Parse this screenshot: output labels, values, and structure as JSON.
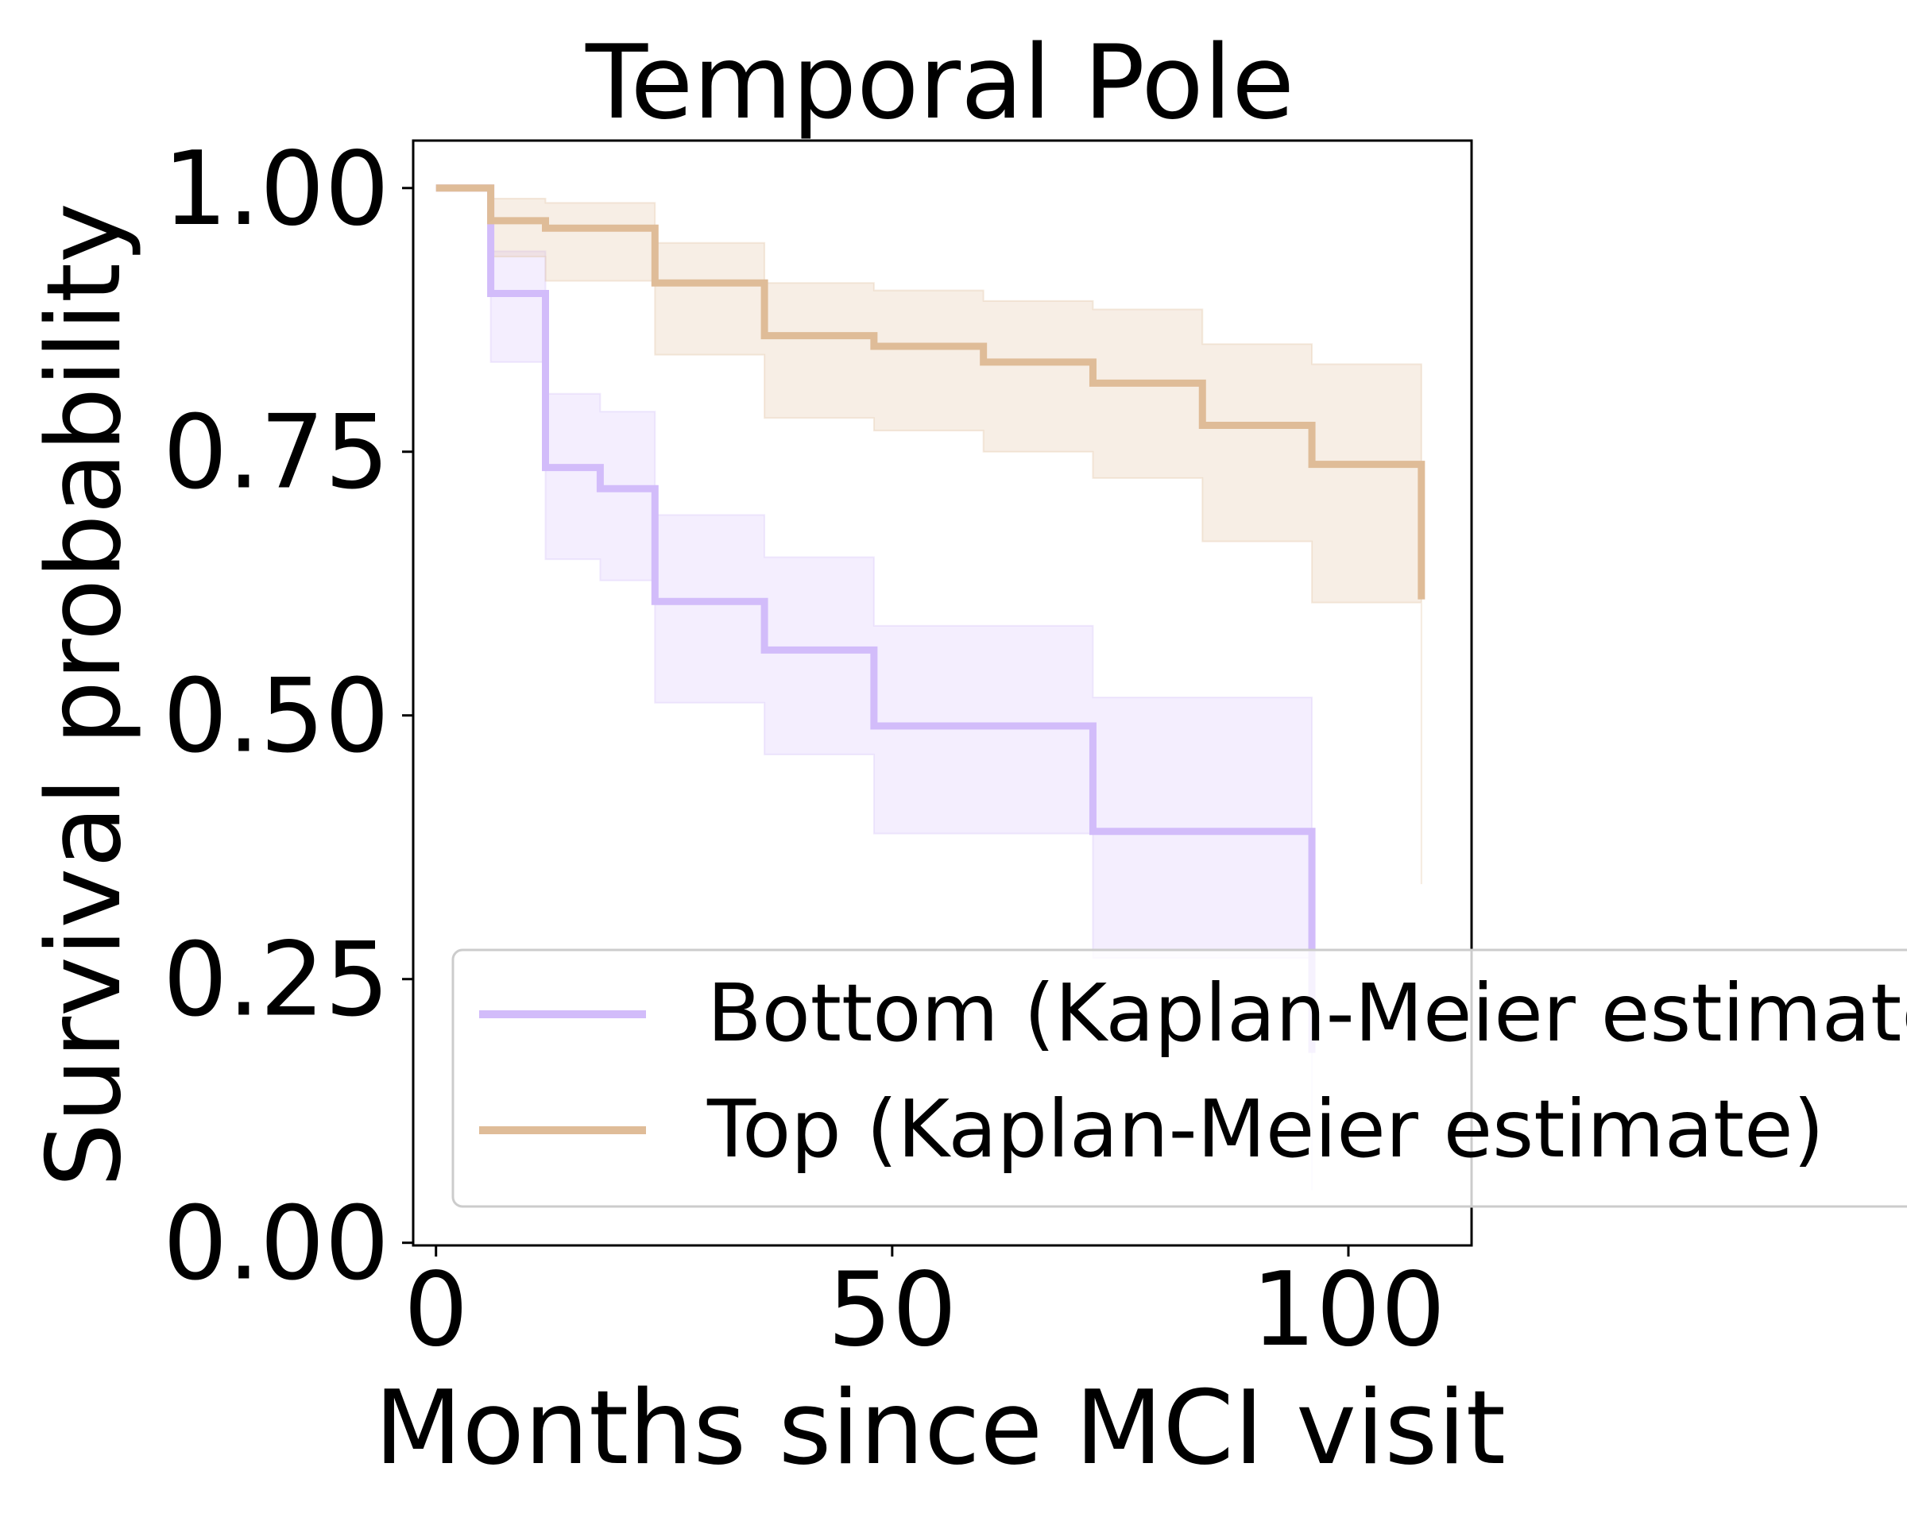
{
  "chart_data": {
    "type": "line",
    "title": "Temporal Pole",
    "xlabel": "Months since MCI visit",
    "ylabel": "Survival probability",
    "xlim": [
      -2.5,
      113.5
    ],
    "ylim": [
      -0.0025,
      1.045
    ],
    "xticks": [
      {
        "value": 0,
        "label": "0"
      },
      {
        "value": 50,
        "label": "50"
      },
      {
        "value": 100,
        "label": "100"
      }
    ],
    "yticks": [
      {
        "value": 0,
        "label": "0.00"
      },
      {
        "value": 0.25,
        "label": "0.25"
      },
      {
        "value": 0.5,
        "label": "0.50"
      },
      {
        "value": 0.75,
        "label": "0.75"
      },
      {
        "value": 1,
        "label": "1.00"
      }
    ],
    "grid": false,
    "legend_position": "lower-right",
    "series": [
      {
        "name": "Bottom (Kaplan-Meier estimate)",
        "color": "#d2bcfa",
        "step": "post",
        "x": [
          0,
          6,
          12,
          18,
          24,
          36,
          48,
          60,
          72,
          84,
          96
        ],
        "y": [
          1.0,
          0.9,
          0.735,
          0.715,
          0.608,
          0.562,
          0.49,
          0.49,
          0.39,
          0.39,
          0.18
        ],
        "ci_lower": [
          1.0,
          0.835,
          0.648,
          0.628,
          0.512,
          0.463,
          0.388,
          0.388,
          0.27,
          0.27,
          0.05
        ],
        "ci_upper": [
          1.0,
          0.94,
          0.805,
          0.788,
          0.69,
          0.65,
          0.585,
          0.585,
          0.517,
          0.517,
          0.517
        ]
      },
      {
        "name": "Top (Kaplan-Meier estimate)",
        "color": "#dfbc98",
        "step": "post",
        "x": [
          0,
          6,
          12,
          24,
          36,
          48,
          60,
          72,
          84,
          96,
          108
        ],
        "y": [
          1.0,
          0.969,
          0.962,
          0.91,
          0.86,
          0.85,
          0.835,
          0.815,
          0.775,
          0.738,
          0.61
        ],
        "ci_lower": [
          1.0,
          0.935,
          0.912,
          0.842,
          0.782,
          0.77,
          0.75,
          0.725,
          0.665,
          0.607,
          0.34
        ],
        "ci_upper": [
          1.0,
          0.99,
          0.986,
          0.948,
          0.91,
          0.903,
          0.893,
          0.885,
          0.852,
          0.833,
          0.833
        ]
      }
    ]
  }
}
